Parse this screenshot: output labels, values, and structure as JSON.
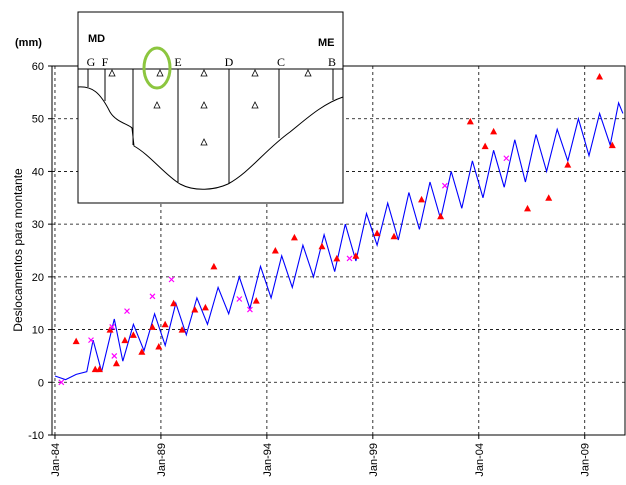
{
  "chart_data": {
    "type": "line",
    "unit_label": "(mm)",
    "y_label": "Deslocamentos para montante",
    "xlim": [
      1983.86,
      2010.9
    ],
    "ylim": [
      -10,
      60
    ],
    "yticks": [
      -10,
      0,
      10,
      20,
      30,
      40,
      50,
      60
    ],
    "xticks": [
      {
        "value": 1984,
        "label": "Jan-84"
      },
      {
        "value": 1989,
        "label": "Jan-89"
      },
      {
        "value": 1994,
        "label": "Jan-94"
      },
      {
        "value": 1999,
        "label": "Jan-99"
      },
      {
        "value": 2004,
        "label": "Jan-04"
      },
      {
        "value": 2009,
        "label": "Jan-09"
      }
    ],
    "grid": true,
    "series": [
      {
        "color": "#0000ff",
        "marker": "line",
        "x": [
          1984.0,
          1984.5,
          1985.0,
          1985.5,
          1985.8,
          1986.2,
          1986.8,
          1987.2,
          1987.7,
          1988.2,
          1988.7,
          1989.2,
          1989.7,
          1990.2,
          1990.7,
          1991.2,
          1991.7,
          1992.2,
          1992.7,
          1993.2,
          1993.7,
          1994.2,
          1994.7,
          1995.2,
          1995.7,
          1996.2,
          1996.7,
          1997.2,
          1997.7,
          1998.2,
          1998.7,
          1999.2,
          1999.7,
          2000.2,
          2000.7,
          2001.2,
          2001.7,
          2002.2,
          2002.7,
          2003.2,
          2003.7,
          2004.2,
          2004.7,
          2005.2,
          2005.7,
          2006.2,
          2006.7,
          2007.2,
          2007.7,
          2008.2,
          2008.7,
          2009.2,
          2009.7,
          2010.2,
          2010.6,
          2010.8
        ],
        "values": [
          1.2,
          0.5,
          1.5,
          2,
          8,
          2,
          12,
          4,
          11,
          6,
          13,
          7,
          15,
          9,
          16,
          11,
          18,
          13,
          20,
          14,
          22,
          16,
          24,
          18,
          26,
          20,
          28,
          21,
          30,
          23,
          32,
          26,
          34,
          27,
          36,
          29,
          38,
          31,
          40,
          33,
          42,
          35,
          44,
          37,
          46,
          38,
          47,
          40,
          48,
          42,
          50,
          43,
          51,
          45,
          53,
          51
        ]
      },
      {
        "color": "#ff0000",
        "marker": "triangle",
        "x": [
          1985.0,
          1985.9,
          1986.1,
          1986.6,
          1986.9,
          1987.3,
          1987.7,
          1988.1,
          1988.6,
          1988.9,
          1989.2,
          1989.6,
          1990.0,
          1990.6,
          1991.1,
          1991.5,
          1993.5,
          1994.4,
          1995.3,
          1996.6,
          1997.3,
          1998.2,
          1999.2,
          2000.0,
          2001.3,
          2002.2,
          2003.6,
          2004.3,
          2004.7,
          2006.3,
          2007.3,
          2008.2,
          2009.7,
          2010.3
        ],
        "values": [
          7.8,
          2.5,
          2.5,
          10,
          3.6,
          8,
          9,
          5.8,
          10.5,
          6.8,
          11,
          15,
          10,
          13.8,
          14.2,
          22,
          15.5,
          25,
          27.5,
          25.8,
          23.5,
          24,
          28.3,
          27.7,
          34.7,
          31.5,
          49.5,
          44.8,
          47.6,
          33,
          35,
          41.3,
          58,
          45
        ]
      },
      {
        "color": "#ff00ff",
        "marker": "x",
        "x": [
          1984.3,
          1985.7,
          1986.7,
          1986.8,
          1987.4,
          1988.6,
          1989.5,
          1992.7,
          1993.2,
          1997.9,
          2002.4,
          2005.3
        ],
        "values": [
          0,
          8,
          10.5,
          5,
          13.5,
          16.3,
          19.5,
          15.8,
          13.8,
          23.5,
          37.3,
          42.5
        ]
      }
    ],
    "inset": {
      "left": "MD",
      "right": "ME",
      "sections": [
        "G",
        "F",
        "E",
        "D",
        "C",
        "B"
      ]
    }
  }
}
